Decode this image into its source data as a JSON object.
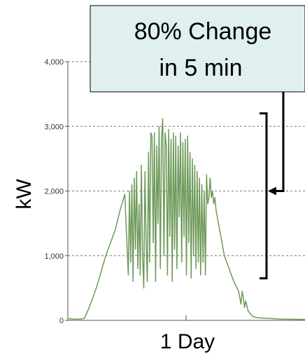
{
  "chart_data": {
    "type": "line",
    "title": "",
    "xlabel": "1 Day",
    "ylabel": "kW",
    "ylim": [
      0,
      4000
    ],
    "yticks": [
      0,
      1000,
      2000,
      3000,
      4000
    ],
    "ytick_labels": [
      "0",
      "1,000",
      "2,000",
      "3,000",
      "4,000"
    ],
    "grid": true,
    "series_color": "#6e9a5a",
    "annotation": {
      "lines": [
        "80% Change",
        "in 5 min"
      ],
      "range_low": 650,
      "range_high": 3200,
      "box_color": "#e0f0f0"
    },
    "series": [
      {
        "x": [
          0,
          0.02,
          0.05,
          0.07,
          0.09,
          0.12,
          0.16,
          0.2,
          0.22,
          0.24,
          0.255,
          0.26,
          0.265,
          0.27,
          0.275,
          0.28,
          0.285,
          0.29,
          0.295,
          0.3,
          0.305,
          0.31,
          0.315,
          0.32,
          0.325,
          0.33,
          0.335,
          0.34,
          0.345,
          0.35,
          0.355,
          0.36,
          0.365,
          0.37,
          0.375,
          0.38,
          0.385,
          0.39,
          0.395,
          0.4,
          0.405,
          0.41,
          0.415,
          0.42,
          0.425,
          0.43,
          0.435,
          0.44,
          0.445,
          0.45,
          0.455,
          0.46,
          0.465,
          0.47,
          0.475,
          0.48,
          0.485,
          0.49,
          0.495,
          0.5,
          0.505,
          0.51,
          0.515,
          0.52,
          0.525,
          0.53,
          0.535,
          0.54,
          0.545,
          0.55,
          0.555,
          0.56,
          0.565,
          0.57,
          0.575,
          0.58,
          0.585,
          0.59,
          0.595,
          0.6,
          0.605,
          0.61,
          0.615,
          0.62,
          0.625,
          0.63,
          0.635,
          0.64,
          0.645,
          0.65,
          0.66,
          0.68,
          0.7,
          0.72,
          0.73,
          0.735,
          0.74,
          0.745,
          0.75,
          0.76,
          0.77,
          0.78,
          0.8,
          0.85,
          0.9,
          1.0
        ],
        "y": [
          30,
          20,
          20,
          30,
          200,
          500,
          1000,
          1400,
          1700,
          1950,
          700,
          2000,
          900,
          2100,
          600,
          2200,
          1100,
          2300,
          800,
          1800,
          700,
          2400,
          1000,
          500,
          2300,
          1200,
          600,
          2600,
          900,
          2900,
          2850,
          1200,
          2900,
          600,
          2700,
          1500,
          3000,
          800,
          2800,
          3120,
          1000,
          2900,
          2700,
          700,
          2950,
          1300,
          2800,
          600,
          2900,
          1100,
          2850,
          800,
          2700,
          1600,
          2900,
          900,
          2750,
          1300,
          2800,
          700,
          2850,
          1200,
          2600,
          650,
          2500,
          1000,
          2400,
          800,
          2300,
          900,
          2200,
          700,
          2100,
          900,
          2000,
          700,
          2250,
          1800,
          1900,
          2200,
          1900,
          2000,
          1800,
          1900,
          1700,
          1600,
          1500,
          1400,
          1300,
          1200,
          1000,
          800,
          600,
          450,
          250,
          450,
          350,
          200,
          300,
          150,
          100,
          60,
          40,
          30,
          20,
          15
        ]
      }
    ]
  }
}
